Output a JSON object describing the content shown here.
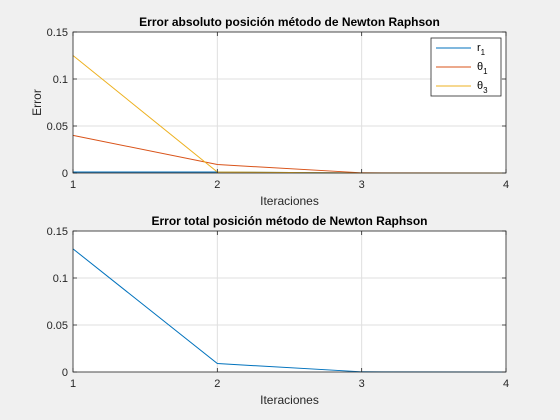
{
  "chart_data": [
    {
      "type": "line",
      "title": "Error absoluto posición método de Newton Raphson",
      "xlabel": "Iteraciones",
      "ylabel": "Error",
      "xlim": [
        1,
        4
      ],
      "ylim": [
        0,
        0.15
      ],
      "xticks": [
        "1",
        "2",
        "3",
        "4"
      ],
      "yticks": [
        "0",
        "0.05",
        "0.1",
        "0.15"
      ],
      "grid": true,
      "legend": "top-right",
      "x": [
        1,
        2,
        3,
        4
      ],
      "series": [
        {
          "name": "r",
          "name_sub": "1",
          "color": "#0072bd",
          "values": [
            0.001,
            0.001,
            0.0,
            0.0
          ]
        },
        {
          "name": "θ",
          "name_sub": "1",
          "color": "#d95319",
          "values": [
            0.04,
            0.009,
            0.0002,
            0.0
          ]
        },
        {
          "name": "θ",
          "name_sub": "3",
          "color": "#edb120",
          "values": [
            0.125,
            0.001,
            0.0,
            0.0
          ]
        }
      ]
    },
    {
      "type": "line",
      "title": "Error total posición método de Newton Raphson",
      "xlabel": "Iteraciones",
      "ylabel": "",
      "xlim": [
        1,
        4
      ],
      "ylim": [
        0,
        0.15
      ],
      "xticks": [
        "1",
        "2",
        "3",
        "4"
      ],
      "yticks": [
        "0",
        "0.05",
        "0.1",
        "0.15"
      ],
      "grid": true,
      "x": [
        1,
        2,
        3,
        4
      ],
      "series": [
        {
          "color": "#0072bd",
          "values": [
            0.131,
            0.009,
            0.0002,
            0.0
          ]
        }
      ]
    }
  ]
}
